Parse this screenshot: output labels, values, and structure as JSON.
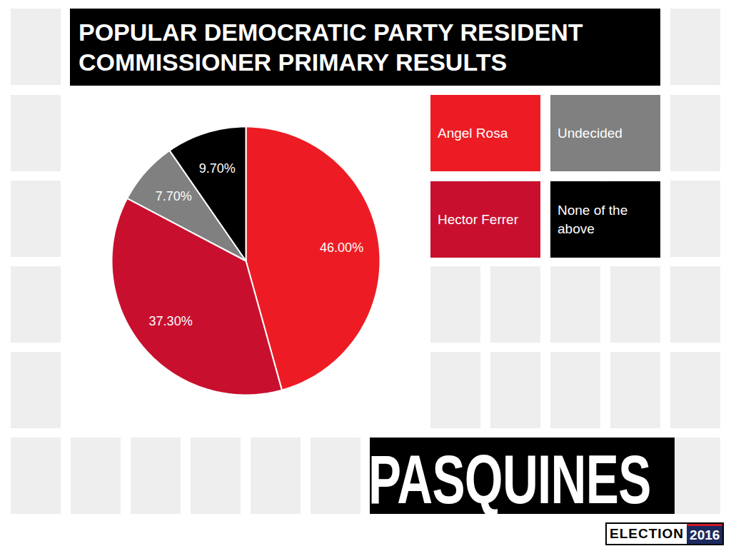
{
  "chart_data": {
    "type": "pie",
    "title": "POPULAR DEMOCRATIC PARTY RESIDENT COMMISSIONER PRIMARY RESULTS",
    "categories": [
      "Angel Rosa",
      "Hector Ferrer",
      "Undecided",
      "None of the above"
    ],
    "values": [
      46.0,
      37.3,
      7.7,
      9.7
    ],
    "value_labels": [
      "46.00%",
      "37.30%",
      "7.70%",
      "9.70%"
    ],
    "colors": [
      "#ed1c24",
      "#c8102e",
      "#808080",
      "#000000"
    ],
    "data_labels": true,
    "legend": "top-right",
    "annotations": [
      "PASQUINES",
      "ELECTION",
      "2016"
    ]
  }
}
